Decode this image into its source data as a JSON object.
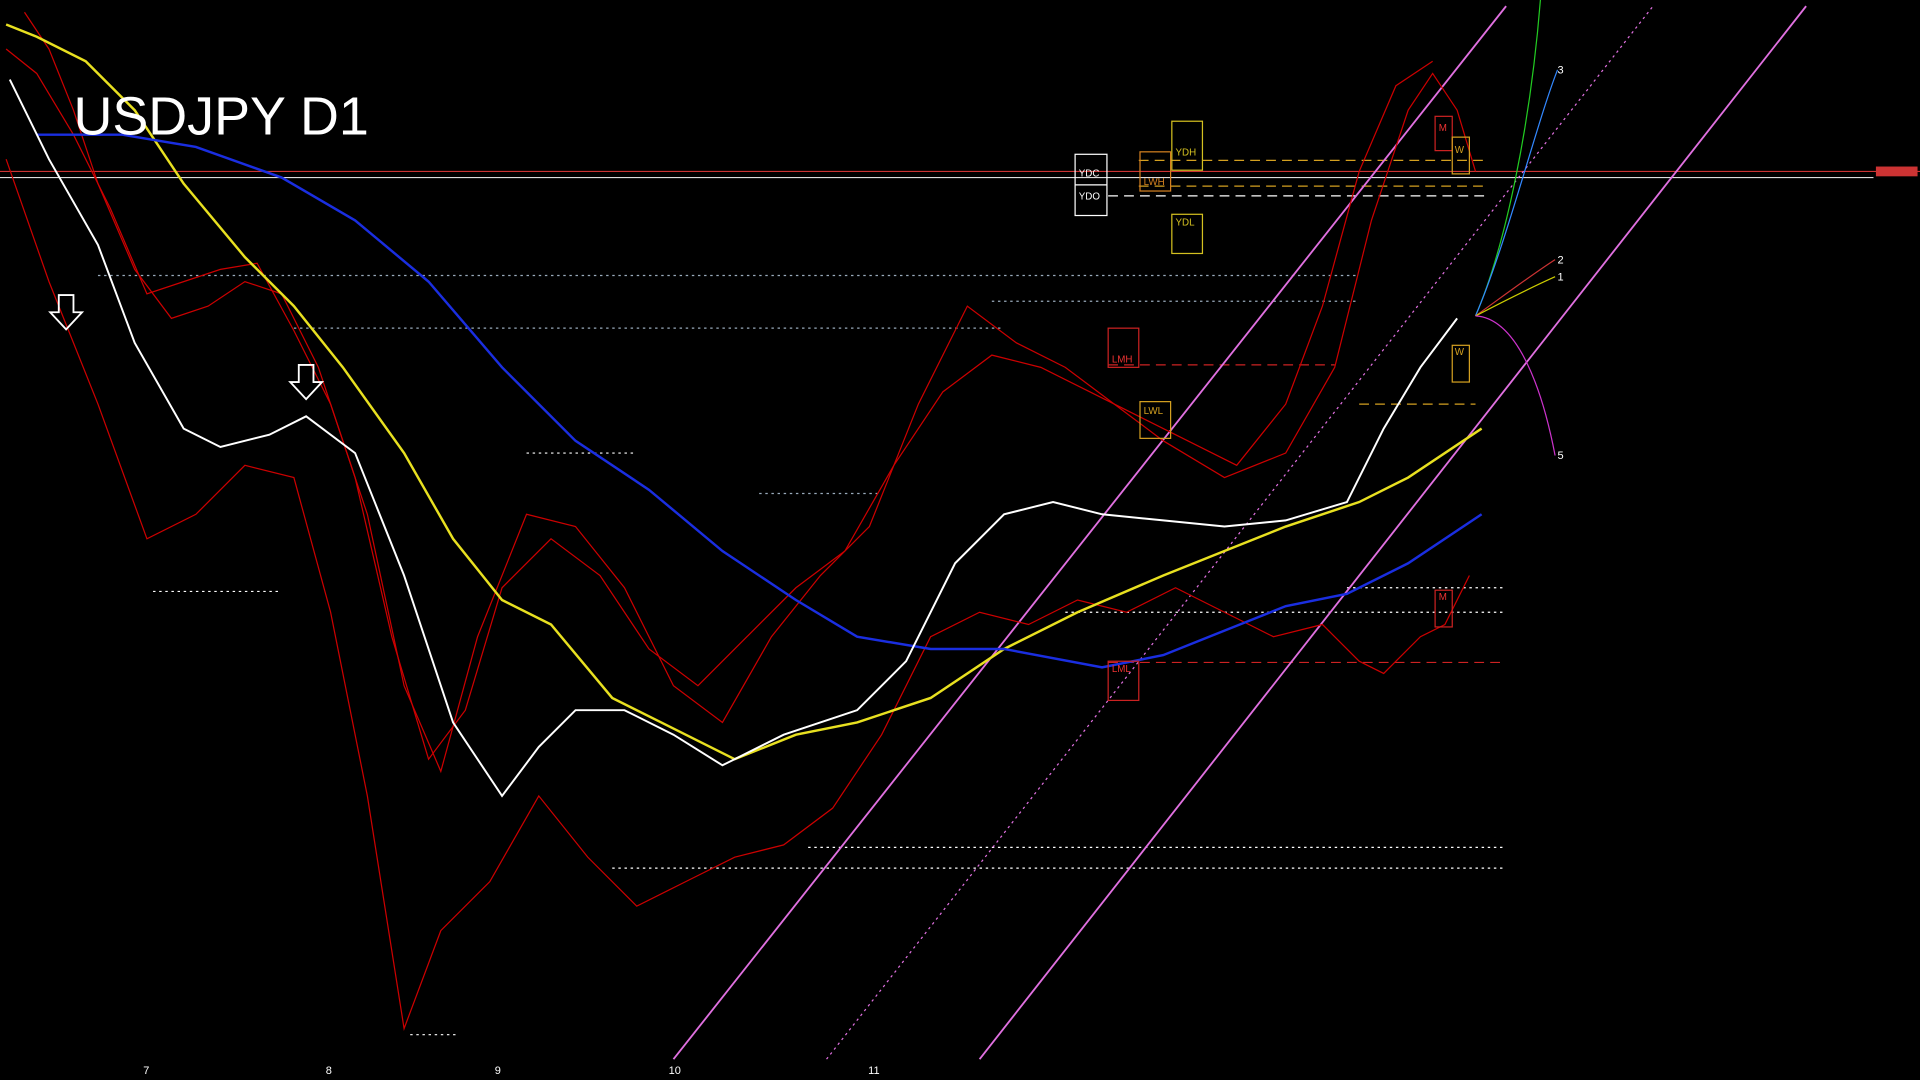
{
  "header": {
    "title": "USDJPY D1"
  },
  "levels": {
    "ydc": "YDC",
    "ydo": "YDO",
    "ydh": "YDH",
    "ydl": "YDL",
    "lwh": "LWH",
    "lwl": "LWL",
    "lmh": "LMH",
    "lml": "LML",
    "m_top": "M",
    "m_bottom": "M",
    "w_top": "W",
    "w_bottom": "W"
  },
  "projections": [
    "3",
    "2",
    "1",
    "5"
  ],
  "x_labels": [
    "7",
    "8",
    "9",
    "10",
    "11"
  ]
}
